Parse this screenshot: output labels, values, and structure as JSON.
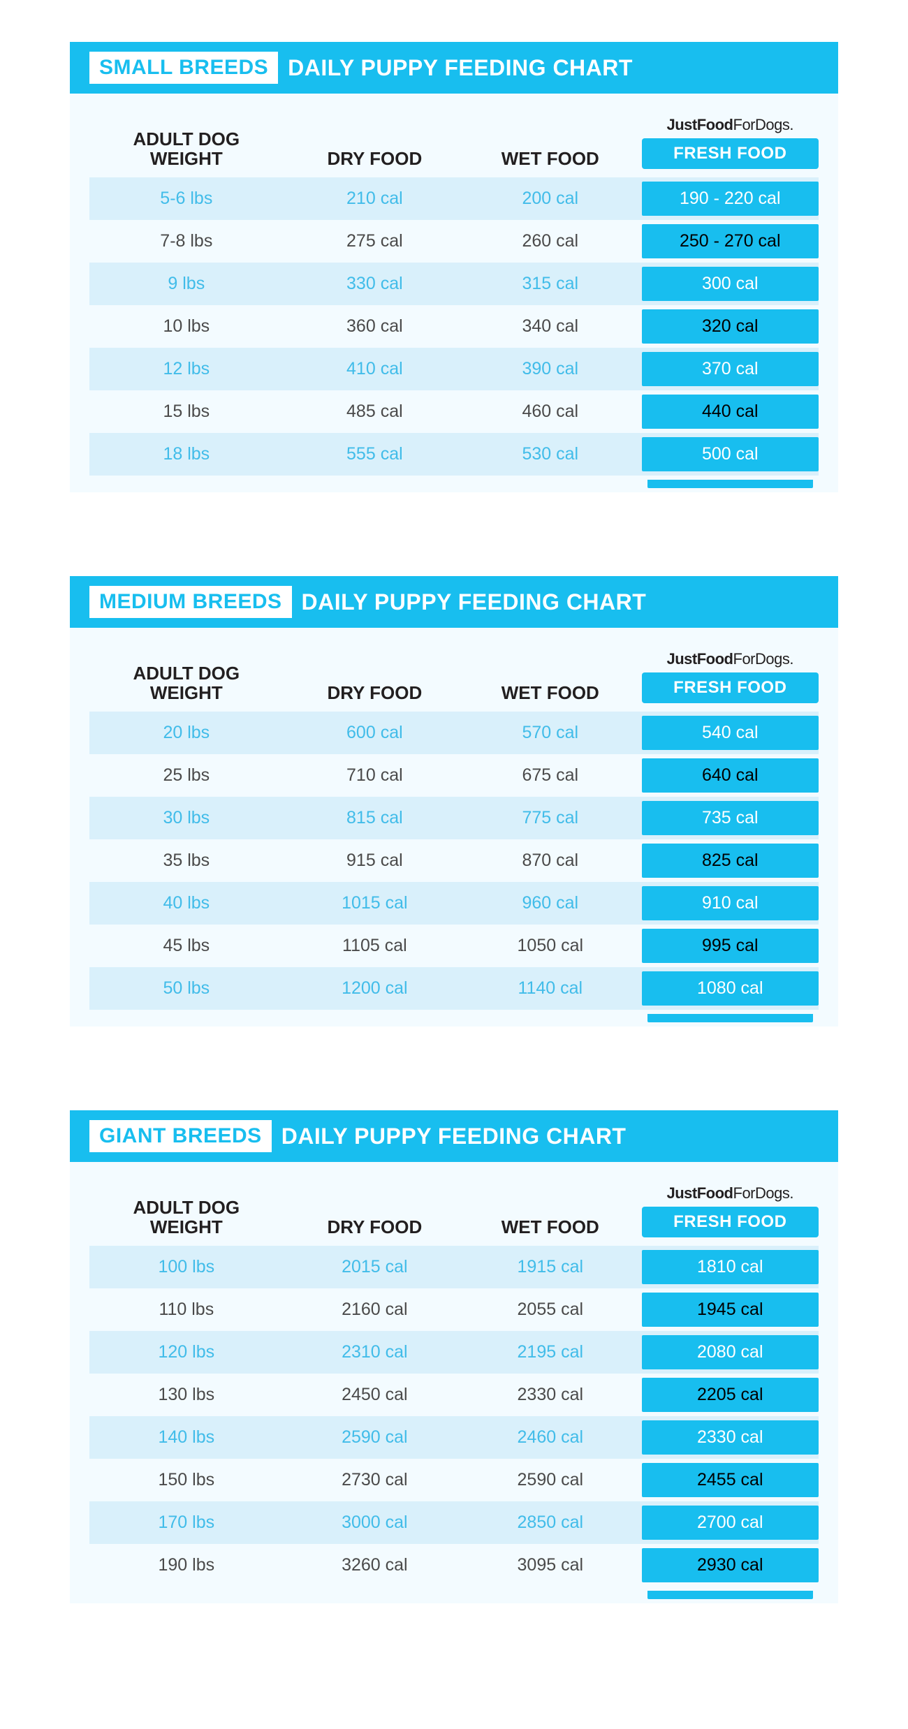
{
  "colors": {
    "accent": "#18beef",
    "odd_row": "#d9f0fb",
    "odd_text": "#41bce9",
    "even_text": "#4a4a4a",
    "page_bg": "#ffffff",
    "panel_bg": "#f3fbff"
  },
  "shared": {
    "title_suffix": "DAILY PUPPY FEEDING CHART",
    "brand_bold": "JustFood",
    "brand_rest": "ForDogs.",
    "col_weight_l1": "ADULT DOG",
    "col_weight_l2": "WEIGHT",
    "col_dry": "DRY FOOD",
    "col_wet": "WET FOOD",
    "col_fresh": "FRESH FOOD"
  },
  "charts": [
    {
      "badge": "SMALL BREEDS",
      "rows": [
        {
          "w": "5-6 lbs",
          "d": "210 cal",
          "wet": "200 cal",
          "f": "190 - 220 cal"
        },
        {
          "w": "7-8 lbs",
          "d": "275 cal",
          "wet": "260 cal",
          "f": "250 - 270 cal"
        },
        {
          "w": "9 lbs",
          "d": "330 cal",
          "wet": "315 cal",
          "f": "300 cal"
        },
        {
          "w": "10 lbs",
          "d": "360 cal",
          "wet": "340 cal",
          "f": "320 cal"
        },
        {
          "w": "12 lbs",
          "d": "410 cal",
          "wet": "390 cal",
          "f": "370 cal"
        },
        {
          "w": "15 lbs",
          "d": "485 cal",
          "wet": "460 cal",
          "f": "440 cal"
        },
        {
          "w": "18 lbs",
          "d": "555 cal",
          "wet": "530 cal",
          "f": "500 cal"
        }
      ]
    },
    {
      "badge": "MEDIUM BREEDS",
      "rows": [
        {
          "w": "20 lbs",
          "d": "600 cal",
          "wet": "570 cal",
          "f": "540 cal"
        },
        {
          "w": "25 lbs",
          "d": "710 cal",
          "wet": "675 cal",
          "f": "640 cal"
        },
        {
          "w": "30 lbs",
          "d": "815 cal",
          "wet": "775 cal",
          "f": "735 cal"
        },
        {
          "w": "35 lbs",
          "d": "915 cal",
          "wet": "870 cal",
          "f": "825 cal"
        },
        {
          "w": "40 lbs",
          "d": "1015 cal",
          "wet": "960 cal",
          "f": "910 cal"
        },
        {
          "w": "45 lbs",
          "d": "1105 cal",
          "wet": "1050 cal",
          "f": "995 cal"
        },
        {
          "w": "50 lbs",
          "d": "1200 cal",
          "wet": "1140 cal",
          "f": "1080 cal"
        }
      ]
    },
    {
      "badge": "GIANT BREEDS",
      "rows": [
        {
          "w": "100 lbs",
          "d": "2015 cal",
          "wet": "1915 cal",
          "f": "1810 cal"
        },
        {
          "w": "110 lbs",
          "d": "2160 cal",
          "wet": "2055 cal",
          "f": "1945 cal"
        },
        {
          "w": "120 lbs",
          "d": "2310 cal",
          "wet": "2195 cal",
          "f": "2080 cal"
        },
        {
          "w": "130 lbs",
          "d": "2450 cal",
          "wet": "2330 cal",
          "f": "2205 cal"
        },
        {
          "w": "140 lbs",
          "d": "2590 cal",
          "wet": "2460 cal",
          "f": "2330 cal"
        },
        {
          "w": "150 lbs",
          "d": "2730 cal",
          "wet": "2590 cal",
          "f": "2455 cal"
        },
        {
          "w": "170 lbs",
          "d": "3000 cal",
          "wet": "2850 cal",
          "f": "2700 cal"
        },
        {
          "w": "190 lbs",
          "d": "3260 cal",
          "wet": "3095 cal",
          "f": "2930 cal"
        }
      ]
    }
  ]
}
